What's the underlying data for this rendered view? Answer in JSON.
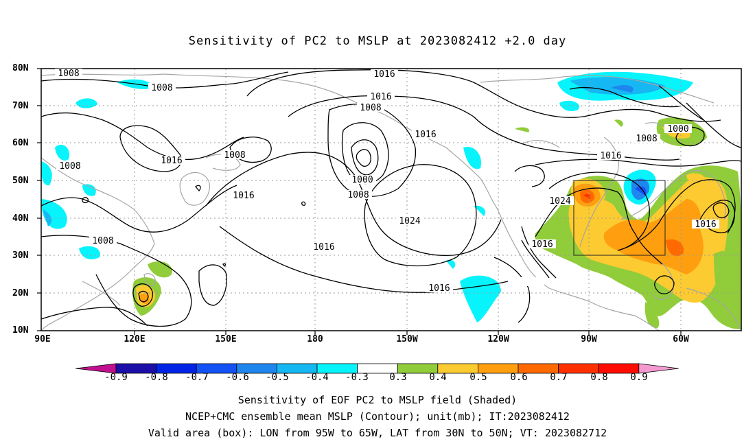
{
  "title": "Sensitivity of PC2 to MSLP at 2023082412 +2.0 day",
  "lat_labels": [
    "80N",
    "70N",
    "60N",
    "50N",
    "40N",
    "30N",
    "20N",
    "10N"
  ],
  "lon_labels": [
    "90E",
    "120E",
    "150E",
    "180",
    "150W",
    "120W",
    "90W",
    "60W"
  ],
  "contour_labels": [
    "1008",
    "1008",
    "1008",
    "1008",
    "1016",
    "1016",
    "1016",
    "1016",
    "1016",
    "1016",
    "1016",
    "1016",
    "1016",
    "1016",
    "1024",
    "1024",
    "1000",
    "1000",
    "1008",
    "1008",
    "1008",
    "1008"
  ],
  "colorbar": {
    "labels": [
      "-0.9",
      "-0.8",
      "-0.7",
      "-0.6",
      "-0.5",
      "-0.4",
      "-0.3",
      "0.3",
      "0.4",
      "0.5",
      "0.6",
      "0.7",
      "0.8",
      "0.9"
    ],
    "colors": [
      "#c0108f",
      "#1b0fa8",
      "#0024e6",
      "#1352f5",
      "#1f86ee",
      "#15b8f2",
      "#08f4fc",
      "#ffffff",
      "#91cc3b",
      "#fccb31",
      "#ff9f10",
      "#ff6a00",
      "#ff3000",
      "#ff0b00",
      "#f49ad0"
    ]
  },
  "captions": {
    "line1": "Sensitivity of EOF PC2 to MSLP field (Shaded)",
    "line2": "NCEP+CMC ensemble mean MSLP (Contour); unit(mb); IT:2023082412",
    "line3": "Valid area (box): LON from 95W to 65W, LAT from 30N to 50N; VT: 2023082712"
  }
}
